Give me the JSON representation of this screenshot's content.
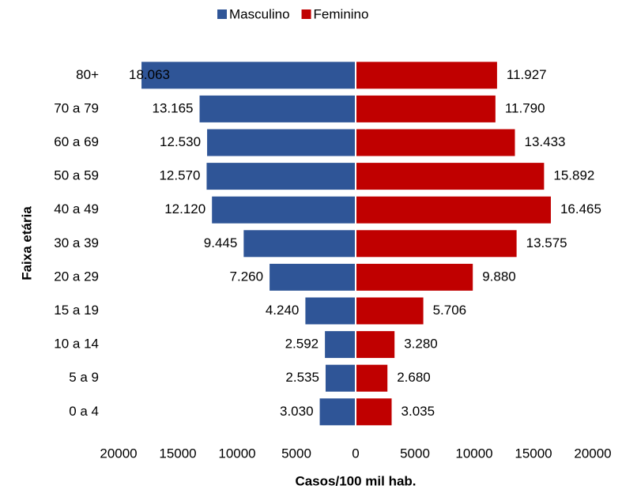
{
  "chart_data": {
    "type": "pyramid",
    "y_axis_label": "Faixa etária",
    "x_axis_label": "Casos/100 mil hab.",
    "categories": [
      "80+",
      "70 a 79",
      "60 a 69",
      "50 a 59",
      "40 a 49",
      "30 a 39",
      "20 a 29",
      "15 a 19",
      "10 a 14",
      "5 a 9",
      "0 a 4"
    ],
    "series": [
      {
        "name": "Masculino",
        "color": "#2f5597",
        "values": [
          18063,
          13165,
          12530,
          12570,
          12120,
          9445,
          7260,
          4240,
          2592,
          2535,
          3030
        ],
        "value_labels": [
          "18.063",
          "13.165",
          "12.530",
          "12.570",
          "12.120",
          "9.445",
          "7.260",
          "4.240",
          "2.592",
          "2.535",
          "3.030"
        ]
      },
      {
        "name": "Feminino",
        "color": "#c00000",
        "values": [
          11927,
          11790,
          13433,
          15892,
          16465,
          13575,
          9880,
          5706,
          3280,
          2680,
          3035
        ],
        "value_labels": [
          "11.927",
          "11.790",
          "13.433",
          "15.892",
          "16.465",
          "13.575",
          "9.880",
          "5.706",
          "3.280",
          "2.680",
          "3.035"
        ]
      }
    ],
    "xlim": [
      -20000,
      20000
    ],
    "xticks": [
      {
        "value": -20000,
        "label": "20000"
      },
      {
        "value": -15000,
        "label": "15000"
      },
      {
        "value": -10000,
        "label": "10000"
      },
      {
        "value": -5000,
        "label": "5000"
      },
      0,
      5000,
      10000,
      15000,
      20000
    ],
    "legend": "top"
  }
}
